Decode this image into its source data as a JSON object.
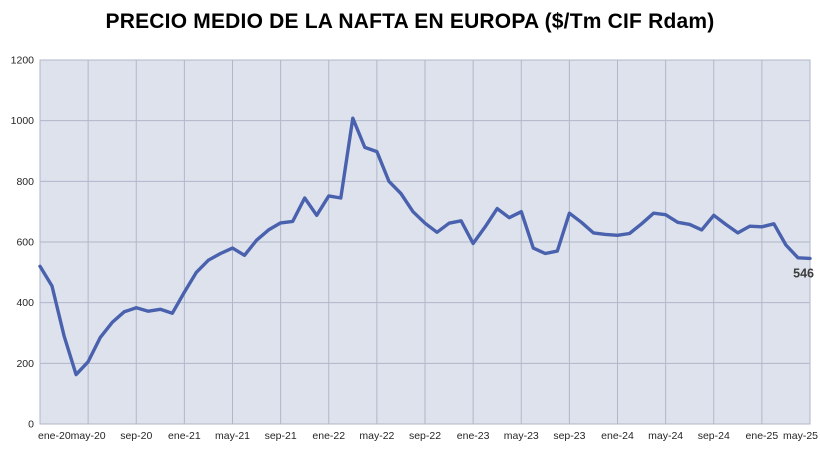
{
  "title": "PRECIO MEDIO DE LA NAFTA EN EUROPA ($/Tm CIF Rdam)",
  "end_label": "546",
  "chart_data": {
    "type": "line",
    "title": "PRECIO MEDIO DE LA NAFTA EN EUROPA ($/Tm CIF Rdam)",
    "xlabel": "",
    "ylabel": "",
    "ylim": [
      0,
      1200
    ],
    "y_tick_step": 200,
    "grid": true,
    "legend": "none",
    "x_tick_labels": [
      "ene-20",
      "may-20",
      "sep-20",
      "ene-21",
      "may-21",
      "sep-21",
      "ene-22",
      "may-22",
      "sep-22",
      "ene-23",
      "may-23",
      "sep-23",
      "ene-24",
      "may-24",
      "sep-24",
      "ene-25",
      "may-25"
    ],
    "x_tick_every_months": 4,
    "months": [
      "ene-20",
      "feb-20",
      "mar-20",
      "abr-20",
      "may-20",
      "jun-20",
      "jul-20",
      "ago-20",
      "sep-20",
      "oct-20",
      "nov-20",
      "dic-20",
      "ene-21",
      "feb-21",
      "mar-21",
      "abr-21",
      "may-21",
      "jun-21",
      "jul-21",
      "ago-21",
      "sep-21",
      "oct-21",
      "nov-21",
      "dic-21",
      "ene-22",
      "feb-22",
      "mar-22",
      "abr-22",
      "may-22",
      "jun-22",
      "jul-22",
      "ago-22",
      "sep-22",
      "oct-22",
      "nov-22",
      "dic-22",
      "ene-23",
      "feb-23",
      "mar-23",
      "abr-23",
      "may-23",
      "jun-23",
      "jul-23",
      "ago-23",
      "sep-23",
      "oct-23",
      "nov-23",
      "dic-23",
      "ene-24",
      "feb-24",
      "mar-24",
      "abr-24",
      "may-24",
      "jun-24",
      "jul-24",
      "ago-24",
      "sep-24",
      "oct-24",
      "nov-24",
      "dic-24",
      "ene-25",
      "feb-25",
      "mar-25",
      "abr-25",
      "may-25"
    ],
    "values": [
      520,
      455,
      290,
      163,
      205,
      285,
      335,
      370,
      383,
      372,
      378,
      365,
      435,
      500,
      540,
      562,
      580,
      556,
      606,
      640,
      663,
      668,
      745,
      688,
      752,
      745,
      1008,
      912,
      898,
      800,
      760,
      700,
      662,
      632,
      662,
      670,
      595,
      650,
      710,
      680,
      700,
      580,
      562,
      570,
      695,
      665,
      630,
      625,
      622,
      628,
      660,
      695,
      690,
      665,
      658,
      640,
      688,
      658,
      630,
      652,
      650,
      660,
      590,
      548,
      546
    ],
    "last_point_label": "546",
    "colors": {
      "line": "#4a62ae",
      "plot_bg": "#dde2ed",
      "grid": "#b0b7c8",
      "axis_label": "#262626",
      "end_label": "#3d3d3d",
      "title": "#000000"
    }
  }
}
